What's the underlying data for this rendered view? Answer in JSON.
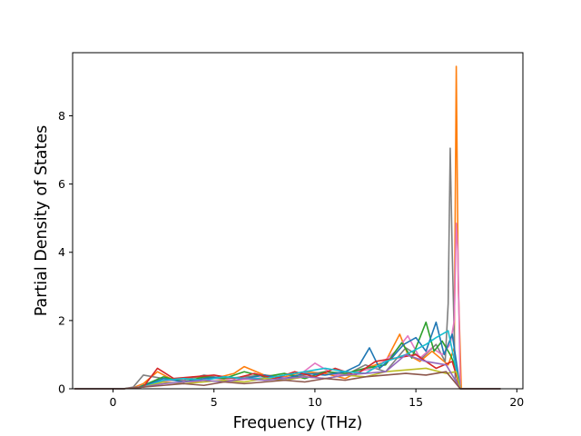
{
  "chart_data": {
    "type": "line",
    "title": "",
    "xlabel": "Frequency (THz)",
    "ylabel": "Partial Density of States",
    "xlim": [
      -2.0,
      20.3
    ],
    "ylim": [
      0,
      9.85
    ],
    "xticks": [
      0,
      5,
      10,
      15,
      20
    ],
    "yticks": [
      0,
      2,
      4,
      6,
      8
    ],
    "grid": false,
    "legend": "none",
    "colors": [
      "#1f77b4",
      "#ff7f0e",
      "#2ca02c",
      "#d62728",
      "#9467bd",
      "#8c564b",
      "#e377c2",
      "#7f7f7f",
      "#bcbd22",
      "#17becf"
    ],
    "series": [
      {
        "color": "#ff7f0e",
        "x": [
          -1.9,
          0.5,
          1.0,
          1.5,
          2.2,
          3.0,
          4.0,
          5.0,
          6.0,
          6.5,
          7.5,
          8.5,
          9.5,
          10.5,
          11.5,
          12.5,
          13.5,
          14.2,
          14.6,
          15.2,
          15.8,
          16.2,
          16.6,
          16.9,
          17.0,
          17.1,
          17.25,
          17.5,
          19.2
        ],
        "y": [
          0,
          0,
          0.03,
          0.15,
          0.5,
          0.25,
          0.35,
          0.3,
          0.45,
          0.65,
          0.4,
          0.35,
          0.5,
          0.45,
          0.3,
          0.6,
          0.8,
          1.6,
          1.0,
          0.8,
          1.1,
          0.9,
          0.7,
          1.2,
          9.45,
          3.0,
          0,
          0,
          0
        ]
      },
      {
        "color": "#7f7f7f",
        "x": [
          -1.9,
          0.5,
          1.0,
          1.5,
          2.5,
          3.5,
          4.5,
          5.5,
          6.5,
          7.5,
          8.5,
          9.5,
          10.5,
          11.5,
          12.5,
          13.5,
          14.5,
          15.3,
          16.0,
          16.45,
          16.6,
          16.7,
          16.8,
          16.95,
          17.2,
          19.2
        ],
        "y": [
          0,
          0,
          0.05,
          0.4,
          0.3,
          0.25,
          0.4,
          0.3,
          0.35,
          0.4,
          0.3,
          0.4,
          0.5,
          0.4,
          0.7,
          0.5,
          1.2,
          0.9,
          1.3,
          0.8,
          2.5,
          7.05,
          4.0,
          0.3,
          0,
          0
        ]
      },
      {
        "color": "#e377c2",
        "x": [
          -1.9,
          0.5,
          1.2,
          2.0,
          3.0,
          4.0,
          5.0,
          6.0,
          7.0,
          8.0,
          9.0,
          10.0,
          11.0,
          12.0,
          13.0,
          14.0,
          14.6,
          15.2,
          15.8,
          16.3,
          16.7,
          16.9,
          17.0,
          17.08,
          17.2,
          19.2
        ],
        "y": [
          0,
          0,
          0.05,
          0.2,
          0.25,
          0.2,
          0.3,
          0.25,
          0.3,
          0.35,
          0.3,
          0.75,
          0.4,
          0.5,
          0.6,
          1.1,
          1.55,
          0.9,
          1.2,
          1.0,
          1.3,
          2.0,
          4.85,
          4.0,
          0,
          0
        ]
      },
      {
        "color": "#2ca02c",
        "x": [
          -1.9,
          0.5,
          1.3,
          2.5,
          3.5,
          4.5,
          5.5,
          6.5,
          7.5,
          8.5,
          9.5,
          10.5,
          11.5,
          12.5,
          13.5,
          14.3,
          14.8,
          15.2,
          15.5,
          15.9,
          16.3,
          16.7,
          17.0,
          17.2,
          19.2
        ],
        "y": [
          0,
          0,
          0.05,
          0.35,
          0.2,
          0.35,
          0.3,
          0.5,
          0.35,
          0.45,
          0.3,
          0.5,
          0.45,
          0.6,
          0.7,
          1.35,
          0.9,
          1.5,
          1.95,
          1.1,
          1.4,
          1.0,
          0.6,
          0,
          0
        ]
      },
      {
        "color": "#1f77b4",
        "x": [
          -1.9,
          0.5,
          1.4,
          2.5,
          3.5,
          4.5,
          5.5,
          6.5,
          7.5,
          8.5,
          9.5,
          10.5,
          11.5,
          12.2,
          12.7,
          13.2,
          13.8,
          14.4,
          15.0,
          15.5,
          16.0,
          16.4,
          16.8,
          17.2,
          19.2
        ],
        "y": [
          0,
          0,
          0.05,
          0.3,
          0.2,
          0.3,
          0.35,
          0.3,
          0.4,
          0.3,
          0.45,
          0.4,
          0.5,
          0.7,
          1.2,
          0.6,
          0.9,
          1.3,
          1.5,
          1.1,
          1.95,
          1.0,
          1.6,
          0,
          0
        ]
      },
      {
        "color": "#d62728",
        "x": [
          -1.9,
          0.5,
          1.5,
          2.2,
          3.0,
          4.0,
          5.0,
          6.0,
          7.0,
          8.0,
          9.0,
          10.0,
          11.0,
          12.0,
          13.0,
          14.0,
          15.0,
          16.0,
          16.8,
          17.2,
          19.2
        ],
        "y": [
          0,
          0,
          0.05,
          0.6,
          0.3,
          0.35,
          0.4,
          0.3,
          0.45,
          0.3,
          0.5,
          0.35,
          0.6,
          0.4,
          0.8,
          0.9,
          1.0,
          0.6,
          0.8,
          0,
          0
        ]
      },
      {
        "color": "#17becf",
        "x": [
          -1.9,
          0.5,
          1.5,
          2.5,
          3.5,
          4.5,
          5.5,
          6.5,
          7.5,
          8.5,
          9.5,
          10.5,
          11.5,
          12.5,
          13.5,
          14.5,
          15.5,
          16.0,
          16.6,
          17.2,
          19.2
        ],
        "y": [
          0,
          0,
          0.05,
          0.25,
          0.3,
          0.25,
          0.35,
          0.3,
          0.3,
          0.4,
          0.5,
          0.6,
          0.5,
          0.45,
          0.8,
          1.0,
          1.3,
          1.5,
          1.7,
          0,
          0
        ]
      },
      {
        "color": "#bcbd22",
        "x": [
          -1.9,
          0.5,
          1.5,
          2.5,
          3.5,
          4.5,
          5.5,
          6.5,
          7.5,
          8.5,
          9.5,
          10.5,
          11.5,
          12.5,
          13.5,
          14.5,
          15.5,
          16.5,
          17.0,
          17.2,
          19.2
        ],
        "y": [
          0,
          0,
          0.05,
          0.2,
          0.15,
          0.2,
          0.25,
          0.2,
          0.3,
          0.25,
          0.35,
          0.3,
          0.4,
          0.35,
          0.5,
          0.55,
          0.6,
          0.45,
          0.5,
          0,
          0
        ]
      },
      {
        "color": "#9467bd",
        "x": [
          -1.9,
          0.5,
          1.5,
          2.5,
          3.5,
          4.5,
          5.5,
          6.5,
          7.5,
          8.5,
          9.5,
          10.5,
          11.5,
          12.5,
          13.5,
          14.5,
          15.5,
          16.5,
          17.2,
          19.2
        ],
        "y": [
          0,
          0,
          0.05,
          0.15,
          0.2,
          0.25,
          0.2,
          0.3,
          0.25,
          0.3,
          0.35,
          0.3,
          0.4,
          0.45,
          0.5,
          1.0,
          0.8,
          0.7,
          0,
          0
        ]
      },
      {
        "color": "#8c564b",
        "x": [
          -1.9,
          0.5,
          1.5,
          2.5,
          3.5,
          4.5,
          5.5,
          6.5,
          7.5,
          8.5,
          9.5,
          10.5,
          11.5,
          12.5,
          13.5,
          14.5,
          15.5,
          16.5,
          17.2,
          19.2
        ],
        "y": [
          0,
          0,
          0.05,
          0.1,
          0.15,
          0.1,
          0.2,
          0.15,
          0.2,
          0.25,
          0.2,
          0.3,
          0.25,
          0.35,
          0.4,
          0.45,
          0.4,
          0.5,
          0,
          0
        ]
      }
    ]
  }
}
